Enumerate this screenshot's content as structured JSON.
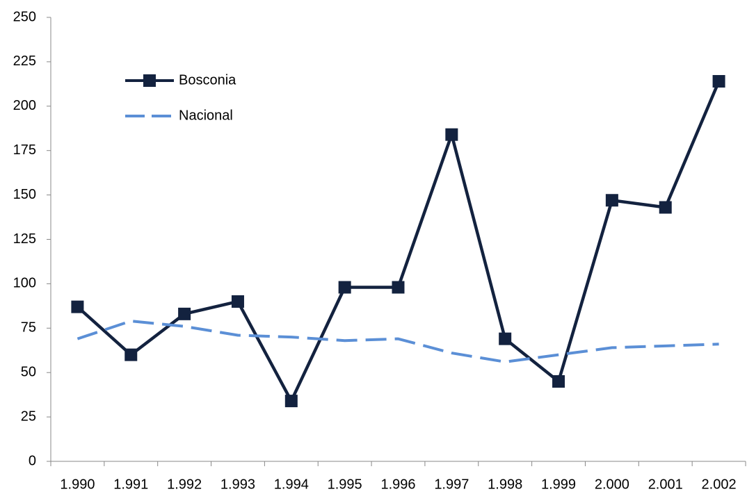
{
  "chart_data": {
    "type": "line",
    "categories": [
      "1.990",
      "1.991",
      "1.992",
      "1.993",
      "1.994",
      "1.995",
      "1.996",
      "1.997",
      "1.998",
      "1.999",
      "2.000",
      "2.001",
      "2.002"
    ],
    "series": [
      {
        "name": "Bosconia",
        "color": "#13223f",
        "marker": "square",
        "line_style": "solid",
        "values": [
          87,
          60,
          83,
          90,
          34,
          98,
          98,
          184,
          69,
          45,
          147,
          143,
          214
        ]
      },
      {
        "name": "Nacional",
        "color": "#5b8fd6",
        "marker": "none",
        "line_style": "dashed",
        "values": [
          69,
          79,
          76,
          71,
          70,
          68,
          69,
          61,
          56,
          60,
          64,
          65,
          66
        ]
      }
    ],
    "ylim": [
      0,
      250
    ],
    "yticks": [
      0,
      25,
      50,
      75,
      100,
      125,
      150,
      175,
      200,
      225,
      250
    ],
    "grid": false
  }
}
